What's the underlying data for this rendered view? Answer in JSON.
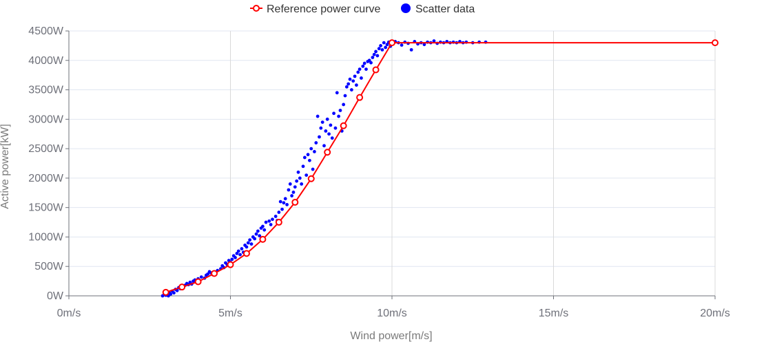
{
  "chart_data": {
    "type": "scatter",
    "xlabel": "Wind power[m/s]",
    "ylabel": "Active power[kW]",
    "xlim": [
      0,
      20
    ],
    "ylim": [
      0,
      4500
    ],
    "x_ticks": [
      0,
      5,
      10,
      15,
      20
    ],
    "y_ticks": [
      0,
      500,
      1000,
      1500,
      2000,
      2500,
      3000,
      3500,
      4000,
      4500
    ],
    "x_tick_labels": [
      "0m/s",
      "5m/s",
      "10m/s",
      "15m/s",
      "20m/s"
    ],
    "y_tick_labels": [
      "0W",
      "500W",
      "1000W",
      "1500W",
      "2000W",
      "2500W",
      "3000W",
      "3500W",
      "4000W",
      "4500W"
    ],
    "grid": true,
    "legend_position": "top-center",
    "legend": [
      {
        "label": "Reference power curve",
        "color": "#ff0000",
        "marker": "circle-line"
      },
      {
        "label": "Scatter data",
        "color": "#0000ff",
        "marker": "dot"
      }
    ],
    "series": [
      {
        "name": "Reference power curve",
        "type": "line",
        "color": "#ff0000",
        "points": [
          [
            3.0,
            60
          ],
          [
            3.5,
            150
          ],
          [
            4.0,
            240
          ],
          [
            4.5,
            380
          ],
          [
            5.0,
            530
          ],
          [
            5.5,
            720
          ],
          [
            6.0,
            960
          ],
          [
            6.5,
            1250
          ],
          [
            7.0,
            1590
          ],
          [
            7.5,
            1990
          ],
          [
            8.0,
            2440
          ],
          [
            8.5,
            2890
          ],
          [
            9.0,
            3370
          ],
          [
            9.5,
            3840
          ],
          [
            10.0,
            4300
          ],
          [
            20.0,
            4300
          ]
        ]
      },
      {
        "name": "Scatter data",
        "type": "scatter",
        "color": "#0000ff",
        "points": [
          [
            2.9,
            0
          ],
          [
            2.95,
            20
          ],
          [
            3.0,
            10
          ],
          [
            3.05,
            40
          ],
          [
            3.08,
            0
          ],
          [
            3.1,
            60
          ],
          [
            3.15,
            30
          ],
          [
            3.2,
            80
          ],
          [
            3.25,
            50
          ],
          [
            3.3,
            110
          ],
          [
            3.35,
            90
          ],
          [
            3.4,
            140
          ],
          [
            3.45,
            120
          ],
          [
            3.5,
            170
          ],
          [
            3.55,
            150
          ],
          [
            3.6,
            180
          ],
          [
            3.65,
            210
          ],
          [
            3.7,
            190
          ],
          [
            3.75,
            230
          ],
          [
            3.8,
            200
          ],
          [
            3.85,
            250
          ],
          [
            3.9,
            270
          ],
          [
            3.95,
            230
          ],
          [
            4.0,
            290
          ],
          [
            4.05,
            260
          ],
          [
            4.1,
            320
          ],
          [
            4.2,
            300
          ],
          [
            4.25,
            350
          ],
          [
            4.3,
            370
          ],
          [
            4.35,
            410
          ],
          [
            4.4,
            390
          ],
          [
            4.45,
            360
          ],
          [
            4.5,
            400
          ],
          [
            4.6,
            430
          ],
          [
            4.7,
            460
          ],
          [
            4.75,
            510
          ],
          [
            4.8,
            480
          ],
          [
            4.85,
            560
          ],
          [
            4.9,
            530
          ],
          [
            4.95,
            600
          ],
          [
            5.0,
            570
          ],
          [
            5.05,
            620
          ],
          [
            5.1,
            680
          ],
          [
            5.15,
            650
          ],
          [
            5.2,
            720
          ],
          [
            5.25,
            760
          ],
          [
            5.3,
            700
          ],
          [
            5.35,
            800
          ],
          [
            5.4,
            740
          ],
          [
            5.45,
            860
          ],
          [
            5.5,
            830
          ],
          [
            5.55,
            900
          ],
          [
            5.6,
            950
          ],
          [
            5.65,
            880
          ],
          [
            5.7,
            1000
          ],
          [
            5.75,
            970
          ],
          [
            5.8,
            1050
          ],
          [
            5.85,
            1100
          ],
          [
            5.9,
            1020
          ],
          [
            5.95,
            1150
          ],
          [
            6.0,
            1180
          ],
          [
            6.05,
            1120
          ],
          [
            6.1,
            1250
          ],
          [
            6.2,
            1270
          ],
          [
            6.25,
            1210
          ],
          [
            6.3,
            1300
          ],
          [
            6.4,
            1350
          ],
          [
            6.45,
            1280
          ],
          [
            6.5,
            1420
          ],
          [
            6.55,
            1600
          ],
          [
            6.6,
            1470
          ],
          [
            6.65,
            1580
          ],
          [
            6.7,
            1650
          ],
          [
            6.75,
            1550
          ],
          [
            6.8,
            1800
          ],
          [
            6.85,
            1900
          ],
          [
            6.9,
            1700
          ],
          [
            6.95,
            1760
          ],
          [
            7.0,
            1850
          ],
          [
            7.05,
            1950
          ],
          [
            7.1,
            2100
          ],
          [
            7.15,
            2000
          ],
          [
            7.2,
            1900
          ],
          [
            7.25,
            2200
          ],
          [
            7.3,
            2350
          ],
          [
            7.35,
            2050
          ],
          [
            7.4,
            2400
          ],
          [
            7.45,
            2300
          ],
          [
            7.5,
            2500
          ],
          [
            7.55,
            2150
          ],
          [
            7.6,
            2450
          ],
          [
            7.65,
            2600
          ],
          [
            7.7,
            3050
          ],
          [
            7.75,
            2700
          ],
          [
            7.8,
            2850
          ],
          [
            7.85,
            2950
          ],
          [
            7.9,
            2550
          ],
          [
            7.95,
            2800
          ],
          [
            8.0,
            3000
          ],
          [
            8.05,
            2750
          ],
          [
            8.1,
            2900
          ],
          [
            8.15,
            2680
          ],
          [
            8.2,
            3100
          ],
          [
            8.25,
            2850
          ],
          [
            8.3,
            3450
          ],
          [
            8.35,
            3050
          ],
          [
            8.4,
            3150
          ],
          [
            8.45,
            2800
          ],
          [
            8.5,
            3250
          ],
          [
            8.55,
            3400
          ],
          [
            8.6,
            3550
          ],
          [
            8.65,
            3600
          ],
          [
            8.7,
            3680
          ],
          [
            8.75,
            3500
          ],
          [
            8.8,
            3650
          ],
          [
            8.85,
            3730
          ],
          [
            8.9,
            3580
          ],
          [
            8.95,
            3800
          ],
          [
            9.0,
            3850
          ],
          [
            9.05,
            3700
          ],
          [
            9.1,
            3900
          ],
          [
            9.15,
            3950
          ],
          [
            9.2,
            3850
          ],
          [
            9.25,
            3980
          ],
          [
            9.3,
            4000
          ],
          [
            9.35,
            3960
          ],
          [
            9.4,
            4050
          ],
          [
            9.45,
            4100
          ],
          [
            9.5,
            4150
          ],
          [
            9.55,
            4080
          ],
          [
            9.6,
            4200
          ],
          [
            9.65,
            4250
          ],
          [
            9.7,
            4180
          ],
          [
            9.75,
            4300
          ],
          [
            9.8,
            4220
          ],
          [
            9.85,
            4270
          ],
          [
            9.9,
            4310
          ],
          [
            9.95,
            4240
          ],
          [
            10.0,
            4280
          ],
          [
            10.1,
            4320
          ],
          [
            10.2,
            4300
          ],
          [
            10.3,
            4260
          ],
          [
            10.4,
            4310
          ],
          [
            10.5,
            4290
          ],
          [
            10.6,
            4180
          ],
          [
            10.7,
            4320
          ],
          [
            10.8,
            4280
          ],
          [
            10.9,
            4300
          ],
          [
            11.0,
            4270
          ],
          [
            11.1,
            4310
          ],
          [
            11.2,
            4300
          ],
          [
            11.3,
            4330
          ],
          [
            11.4,
            4290
          ],
          [
            11.5,
            4310
          ],
          [
            11.6,
            4300
          ],
          [
            11.7,
            4320
          ],
          [
            11.8,
            4300
          ],
          [
            11.9,
            4310
          ],
          [
            12.0,
            4300
          ],
          [
            12.1,
            4320
          ],
          [
            12.2,
            4300
          ],
          [
            12.3,
            4310
          ],
          [
            12.5,
            4300
          ],
          [
            12.7,
            4310
          ],
          [
            12.9,
            4310
          ]
        ]
      }
    ]
  }
}
